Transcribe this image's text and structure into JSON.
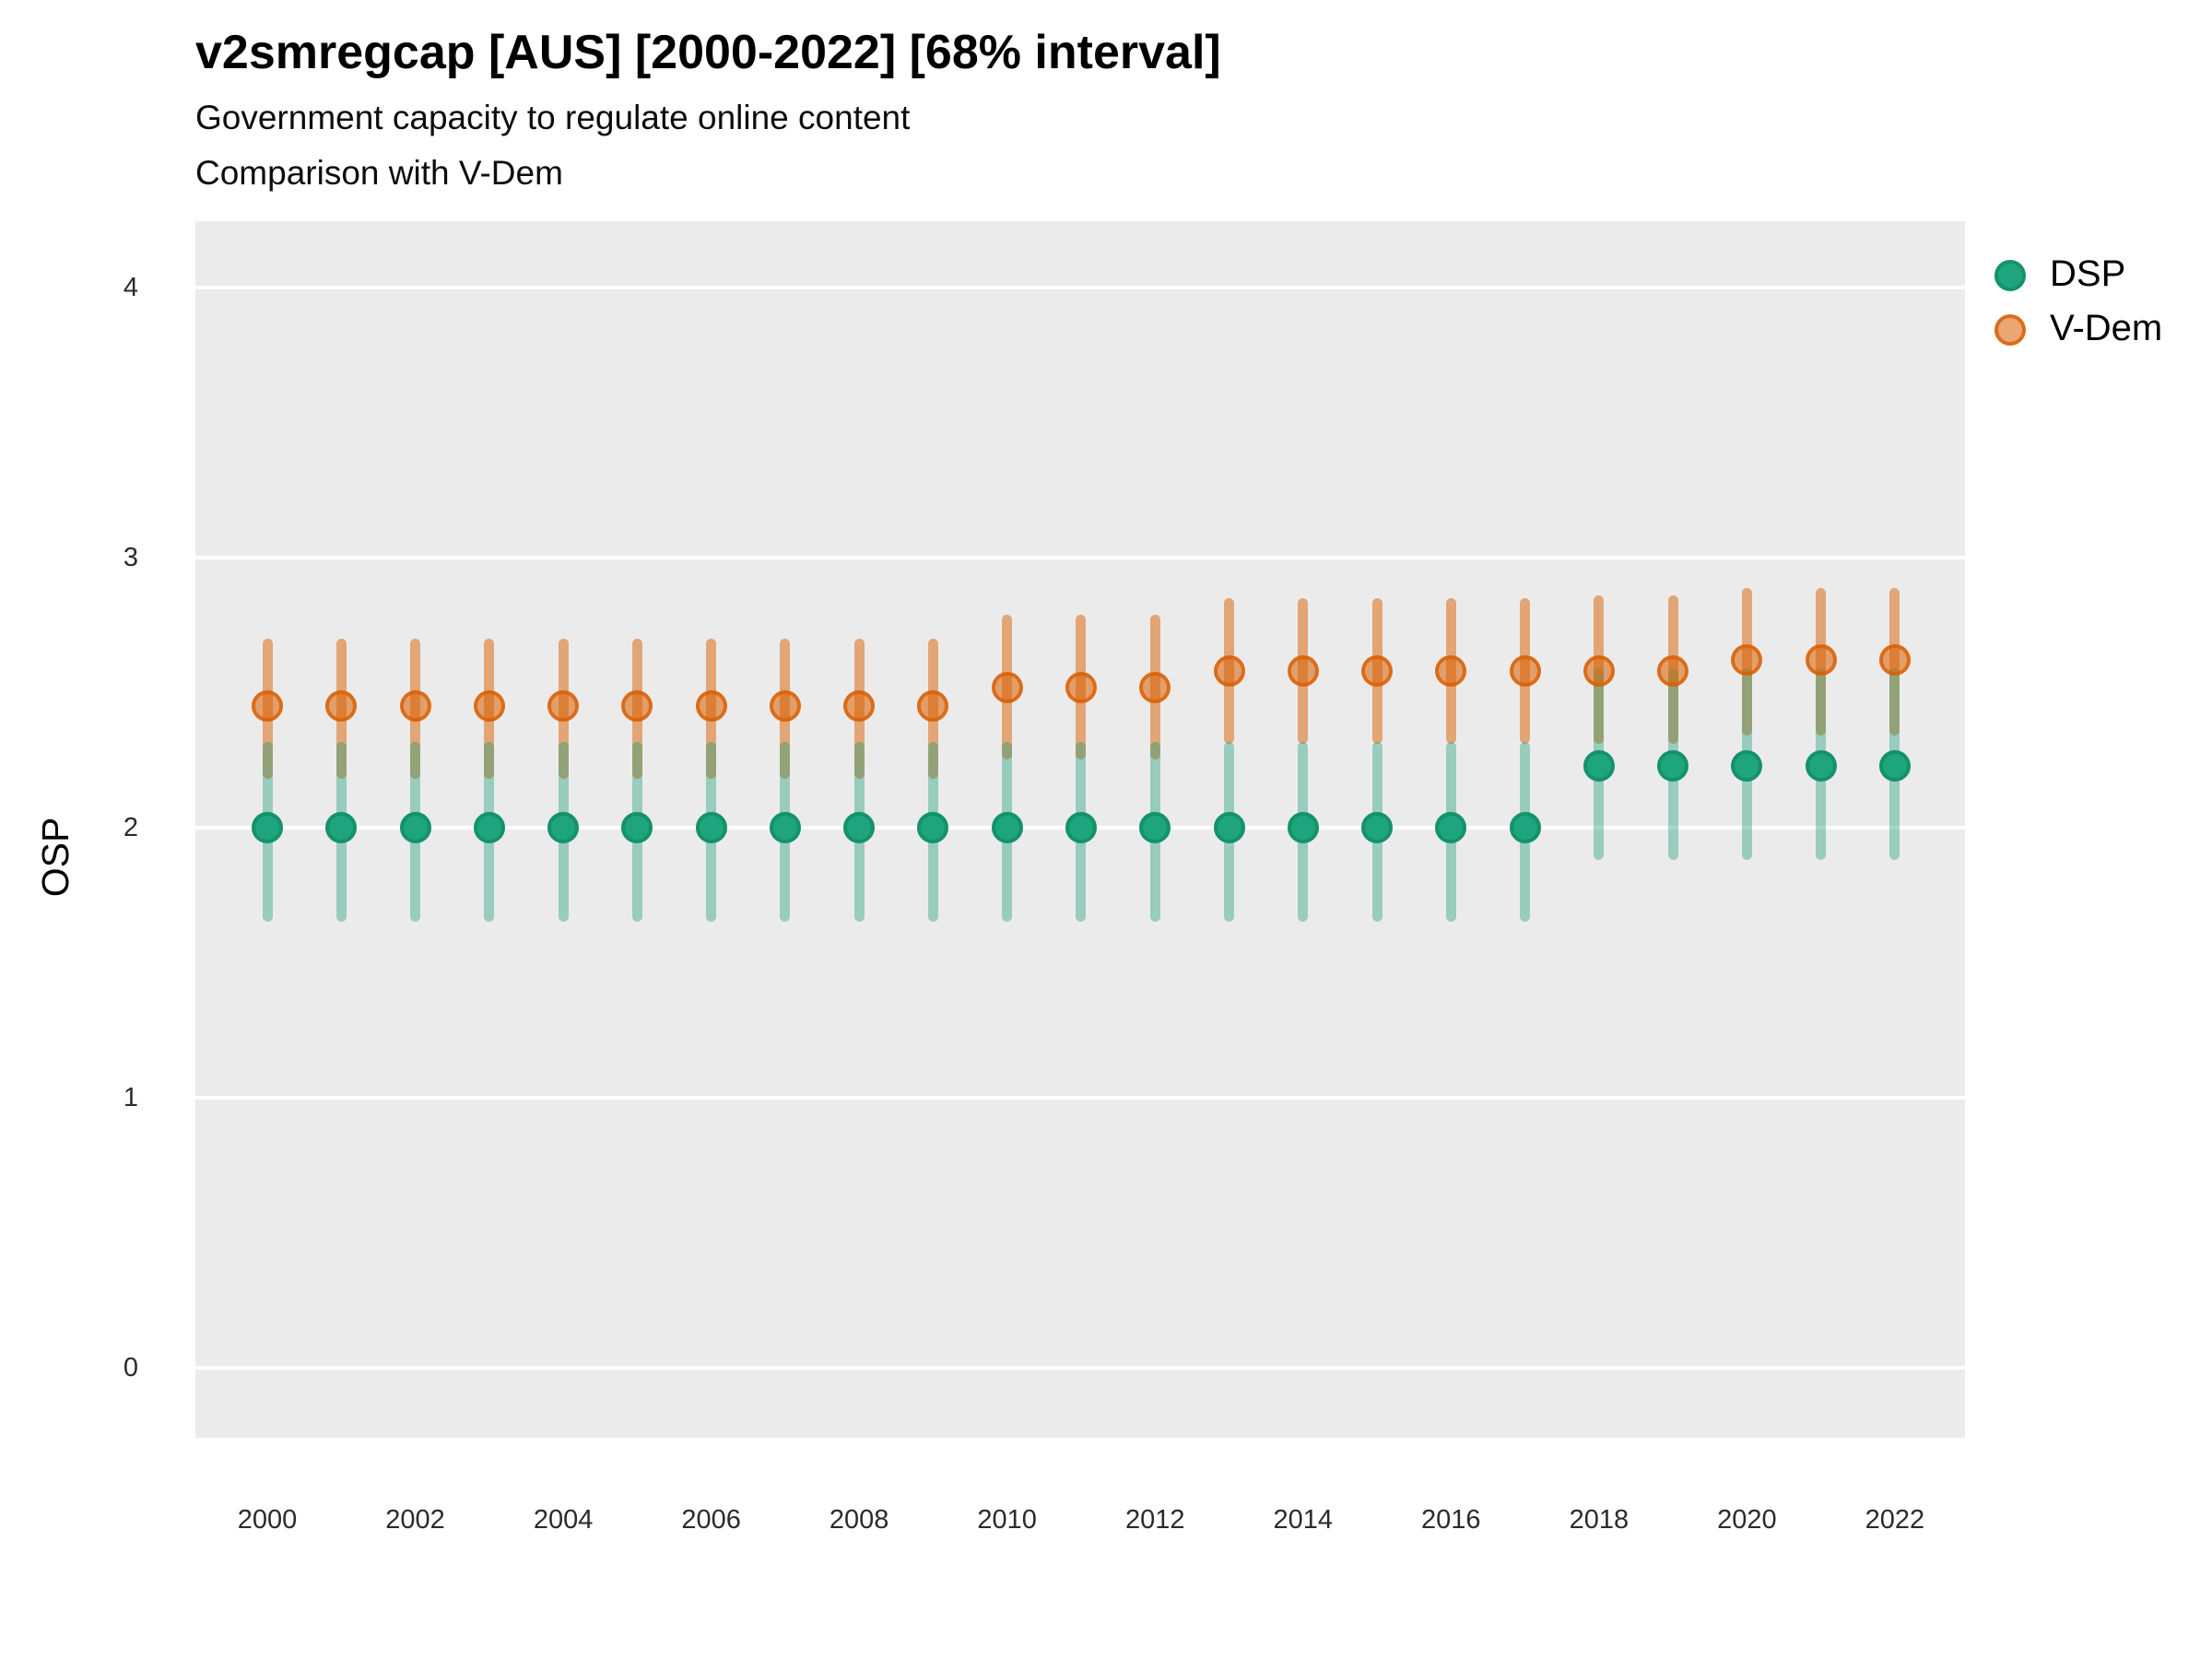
{
  "header": {
    "title": "v2smregcap [AUS] [2000-2022] [68% interval]",
    "subtitle1": "Government capacity to regulate online content",
    "subtitle2": "Comparison with V-Dem"
  },
  "legend": {
    "position": "right-top",
    "items": [
      {
        "label": "DSP"
      },
      {
        "label": "V-Dem"
      }
    ]
  },
  "colors": {
    "panel_background": "#ebebeb",
    "gridline": "#ffffff",
    "dsp_point_fill": "#1ea57d",
    "dsp_point_ring": "#13926b",
    "dsp_interval": "rgba(27,158,119,0.40)",
    "vdem_point_fill": "rgba(217,95,2,0.55)",
    "vdem_point_ring": "rgba(217,95,2,0.80)",
    "vdem_interval": "rgba(217,95,2,0.50)"
  },
  "chart_data": {
    "type": "scatter",
    "variant": "pointrange-errorbar",
    "title": "v2smregcap [AUS] [2000-2022] [68% interval]",
    "subtitle": [
      "Government capacity to regulate online content",
      "Comparison with V-Dem"
    ],
    "xlabel": "",
    "ylabel": "OSP",
    "interval_level": "68%",
    "ylim": [
      -0.25,
      4.25
    ],
    "y_ticks": [
      0,
      1,
      2,
      3,
      4
    ],
    "x_ticks": [
      2000,
      2002,
      2004,
      2006,
      2008,
      2010,
      2012,
      2014,
      2016,
      2018,
      2020,
      2022
    ],
    "grid": "horizontal major gridlines, white on gray panel",
    "legend_position": "right-top",
    "series": [
      {
        "name": "DSP",
        "points": [
          {
            "year": 2000,
            "est": 2.0,
            "lo": 1.67,
            "hi": 2.3
          },
          {
            "year": 2001,
            "est": 2.0,
            "lo": 1.67,
            "hi": 2.3
          },
          {
            "year": 2002,
            "est": 2.0,
            "lo": 1.67,
            "hi": 2.3
          },
          {
            "year": 2003,
            "est": 2.0,
            "lo": 1.67,
            "hi": 2.3
          },
          {
            "year": 2004,
            "est": 2.0,
            "lo": 1.67,
            "hi": 2.3
          },
          {
            "year": 2005,
            "est": 2.0,
            "lo": 1.67,
            "hi": 2.3
          },
          {
            "year": 2006,
            "est": 2.0,
            "lo": 1.67,
            "hi": 2.3
          },
          {
            "year": 2007,
            "est": 2.0,
            "lo": 1.67,
            "hi": 2.3
          },
          {
            "year": 2008,
            "est": 2.0,
            "lo": 1.67,
            "hi": 2.3
          },
          {
            "year": 2009,
            "est": 2.0,
            "lo": 1.67,
            "hi": 2.3
          },
          {
            "year": 2010,
            "est": 2.0,
            "lo": 1.67,
            "hi": 2.3
          },
          {
            "year": 2011,
            "est": 2.0,
            "lo": 1.67,
            "hi": 2.3
          },
          {
            "year": 2012,
            "est": 2.0,
            "lo": 1.67,
            "hi": 2.3
          },
          {
            "year": 2013,
            "est": 2.0,
            "lo": 1.67,
            "hi": 2.3
          },
          {
            "year": 2014,
            "est": 2.0,
            "lo": 1.67,
            "hi": 2.3
          },
          {
            "year": 2015,
            "est": 2.0,
            "lo": 1.67,
            "hi": 2.3
          },
          {
            "year": 2016,
            "est": 2.0,
            "lo": 1.67,
            "hi": 2.3
          },
          {
            "year": 2017,
            "est": 2.0,
            "lo": 1.67,
            "hi": 2.3
          },
          {
            "year": 2018,
            "est": 2.23,
            "lo": 1.9,
            "hi": 2.57
          },
          {
            "year": 2019,
            "est": 2.23,
            "lo": 1.9,
            "hi": 2.57
          },
          {
            "year": 2020,
            "est": 2.23,
            "lo": 1.9,
            "hi": 2.57
          },
          {
            "year": 2021,
            "est": 2.23,
            "lo": 1.9,
            "hi": 2.57
          },
          {
            "year": 2022,
            "est": 2.23,
            "lo": 1.9,
            "hi": 2.57
          }
        ]
      },
      {
        "name": "V-Dem",
        "points": [
          {
            "year": 2000,
            "est": 2.45,
            "lo": 2.2,
            "hi": 2.68
          },
          {
            "year": 2001,
            "est": 2.45,
            "lo": 2.2,
            "hi": 2.68
          },
          {
            "year": 2002,
            "est": 2.45,
            "lo": 2.2,
            "hi": 2.68
          },
          {
            "year": 2003,
            "est": 2.45,
            "lo": 2.2,
            "hi": 2.68
          },
          {
            "year": 2004,
            "est": 2.45,
            "lo": 2.2,
            "hi": 2.68
          },
          {
            "year": 2005,
            "est": 2.45,
            "lo": 2.2,
            "hi": 2.68
          },
          {
            "year": 2006,
            "est": 2.45,
            "lo": 2.2,
            "hi": 2.68
          },
          {
            "year": 2007,
            "est": 2.45,
            "lo": 2.2,
            "hi": 2.68
          },
          {
            "year": 2008,
            "est": 2.45,
            "lo": 2.2,
            "hi": 2.68
          },
          {
            "year": 2009,
            "est": 2.45,
            "lo": 2.2,
            "hi": 2.68
          },
          {
            "year": 2010,
            "est": 2.52,
            "lo": 2.27,
            "hi": 2.77
          },
          {
            "year": 2011,
            "est": 2.52,
            "lo": 2.27,
            "hi": 2.77
          },
          {
            "year": 2012,
            "est": 2.52,
            "lo": 2.27,
            "hi": 2.77
          },
          {
            "year": 2013,
            "est": 2.58,
            "lo": 2.33,
            "hi": 2.83
          },
          {
            "year": 2014,
            "est": 2.58,
            "lo": 2.33,
            "hi": 2.83
          },
          {
            "year": 2015,
            "est": 2.58,
            "lo": 2.33,
            "hi": 2.83
          },
          {
            "year": 2016,
            "est": 2.58,
            "lo": 2.33,
            "hi": 2.83
          },
          {
            "year": 2017,
            "est": 2.58,
            "lo": 2.33,
            "hi": 2.83
          },
          {
            "year": 2018,
            "est": 2.58,
            "lo": 2.33,
            "hi": 2.84
          },
          {
            "year": 2019,
            "est": 2.58,
            "lo": 2.33,
            "hi": 2.84
          },
          {
            "year": 2020,
            "est": 2.62,
            "lo": 2.36,
            "hi": 2.87
          },
          {
            "year": 2021,
            "est": 2.62,
            "lo": 2.36,
            "hi": 2.87
          },
          {
            "year": 2022,
            "est": 2.62,
            "lo": 2.36,
            "hi": 2.87
          }
        ]
      }
    ]
  }
}
